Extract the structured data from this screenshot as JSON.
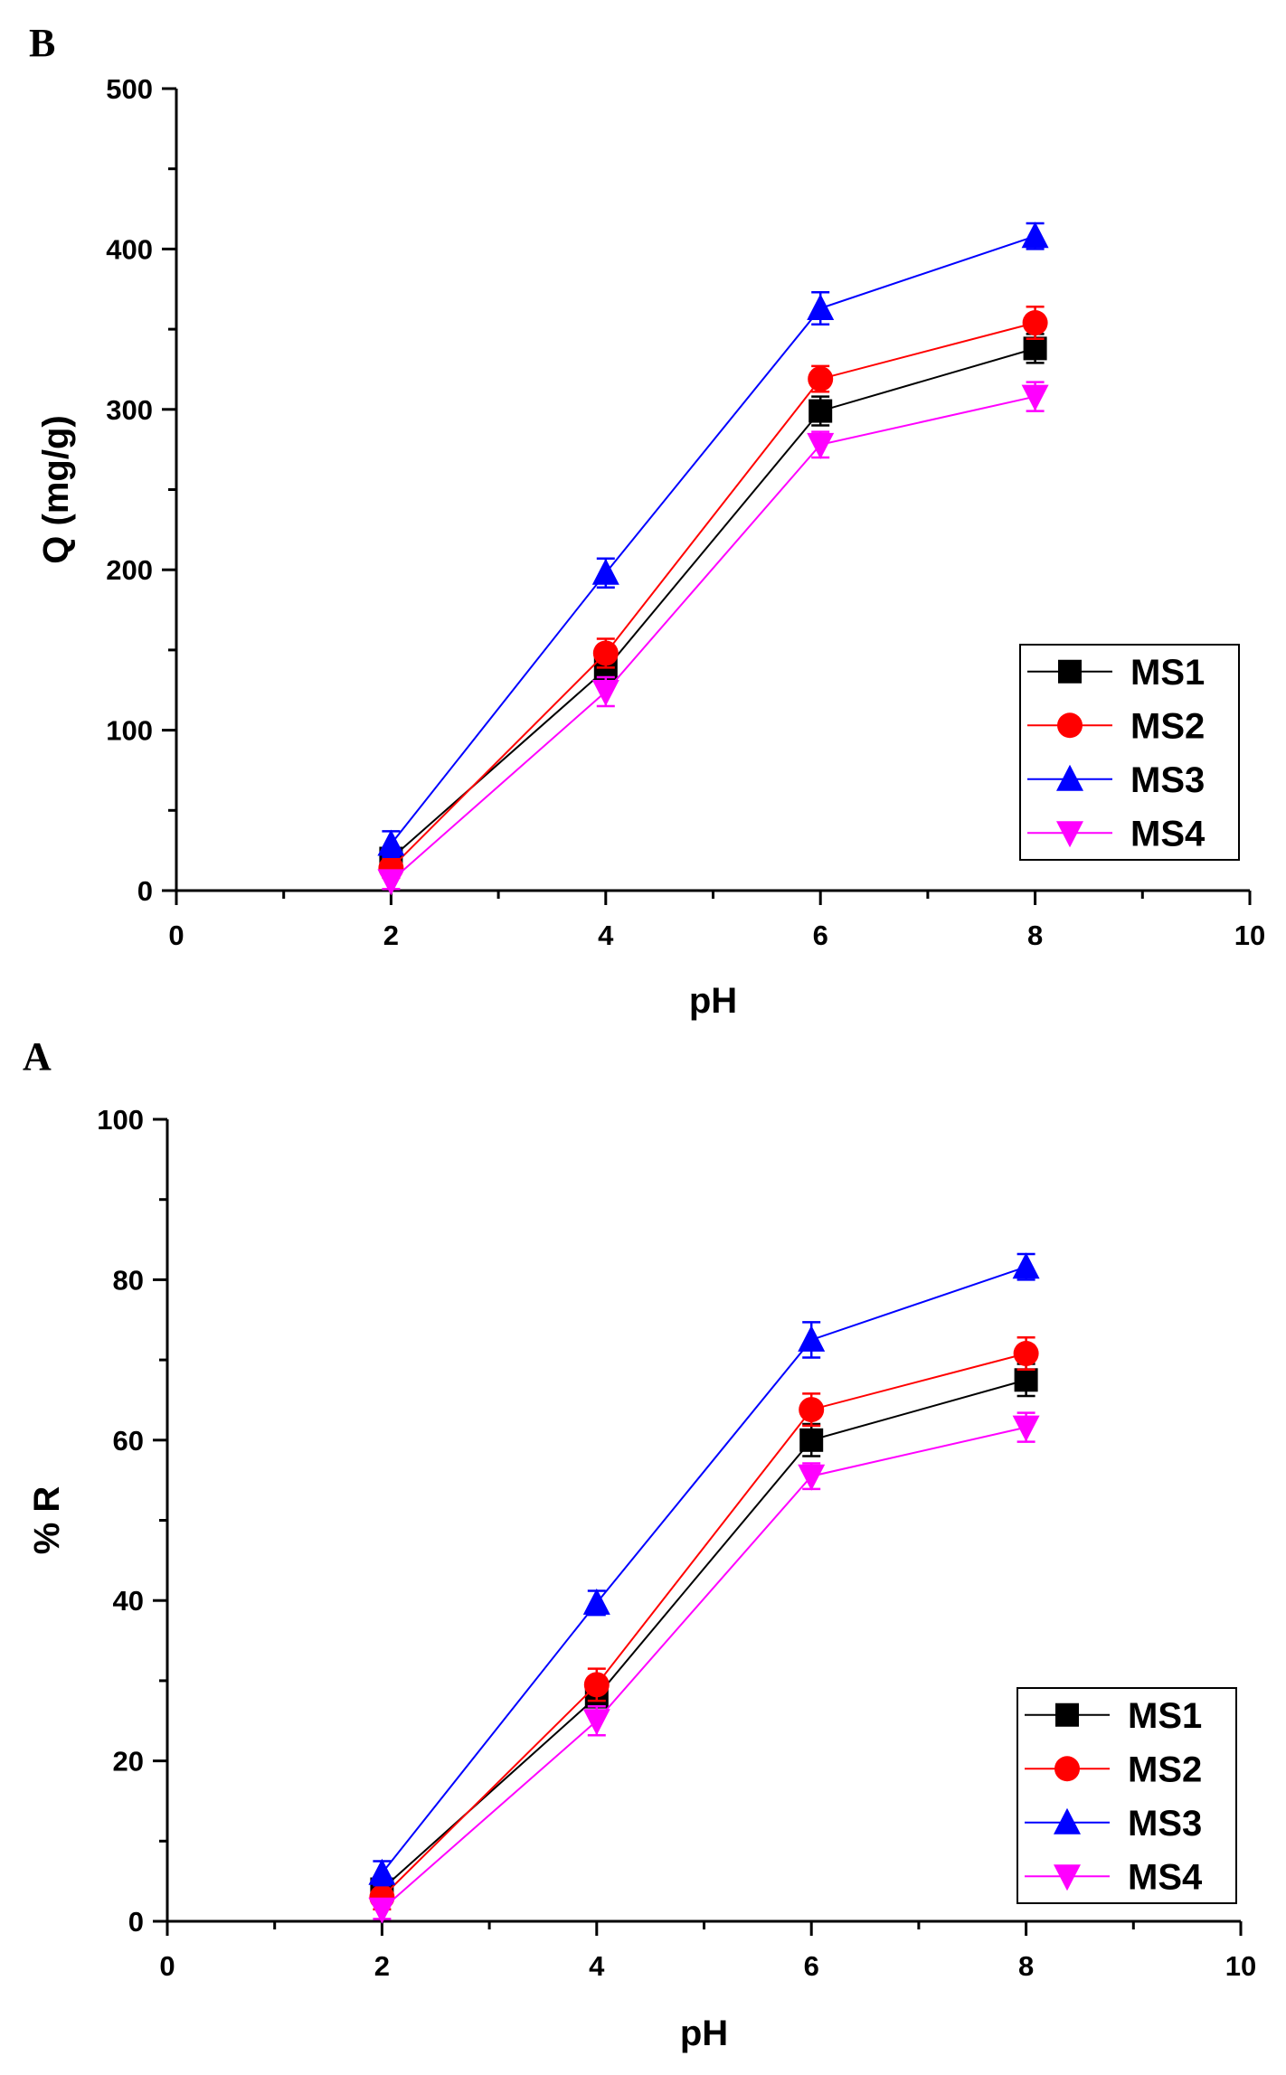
{
  "chart_data": [
    {
      "panel": "B",
      "type": "line",
      "xlabel": "pH",
      "ylabel": "Q (mg/g)",
      "xlim": [
        0,
        10
      ],
      "ylim": [
        0,
        500
      ],
      "xticks": [
        0,
        2,
        4,
        6,
        8,
        10
      ],
      "yticks": [
        0,
        100,
        200,
        300,
        400,
        500
      ],
      "x": [
        2,
        4,
        6,
        8
      ],
      "legend_position": "bottom-right",
      "series": [
        {
          "name": "MS1",
          "color": "#000000",
          "marker": "square",
          "values": [
            20,
            138,
            299,
            338
          ],
          "errors": [
            6,
            8,
            9,
            9
          ]
        },
        {
          "name": "MS2",
          "color": "#ff0000",
          "marker": "circle",
          "values": [
            14,
            148,
            319,
            354
          ],
          "errors": [
            6,
            9,
            8,
            10
          ]
        },
        {
          "name": "MS3",
          "color": "#0000ff",
          "marker": "triangle-up",
          "values": [
            29,
            198,
            363,
            408
          ],
          "errors": [
            8,
            9,
            10,
            8
          ]
        },
        {
          "name": "MS4",
          "color": "#ff00ff",
          "marker": "triangle-down",
          "values": [
            6,
            124,
            278,
            308
          ],
          "errors": [
            5,
            9,
            8,
            9
          ]
        }
      ]
    },
    {
      "panel": "A",
      "type": "line",
      "xlabel": "pH",
      "ylabel": "% R",
      "xlim": [
        0,
        10
      ],
      "ylim": [
        0,
        100
      ],
      "xticks": [
        0,
        2,
        4,
        6,
        8,
        10
      ],
      "yticks": [
        0,
        20,
        40,
        60,
        80,
        100
      ],
      "x": [
        2,
        4,
        6,
        8
      ],
      "legend_position": "bottom-right",
      "series": [
        {
          "name": "MS1",
          "color": "#000000",
          "marker": "square",
          "values": [
            4,
            28,
            60,
            67.5
          ],
          "errors": [
            1.5,
            2,
            2,
            2
          ]
        },
        {
          "name": "MS2",
          "color": "#ff0000",
          "marker": "circle",
          "values": [
            3,
            29.5,
            63.8,
            70.8
          ],
          "errors": [
            1.5,
            2,
            2,
            2
          ]
        },
        {
          "name": "MS3",
          "color": "#0000ff",
          "marker": "triangle-up",
          "values": [
            6,
            39.7,
            72.5,
            81.6
          ],
          "errors": [
            1.5,
            1.5,
            2.2,
            1.6
          ]
        },
        {
          "name": "MS4",
          "color": "#ff00ff",
          "marker": "triangle-down",
          "values": [
            1.5,
            25,
            55.5,
            61.6
          ],
          "errors": [
            1.2,
            1.8,
            1.6,
            1.8
          ]
        }
      ]
    }
  ]
}
